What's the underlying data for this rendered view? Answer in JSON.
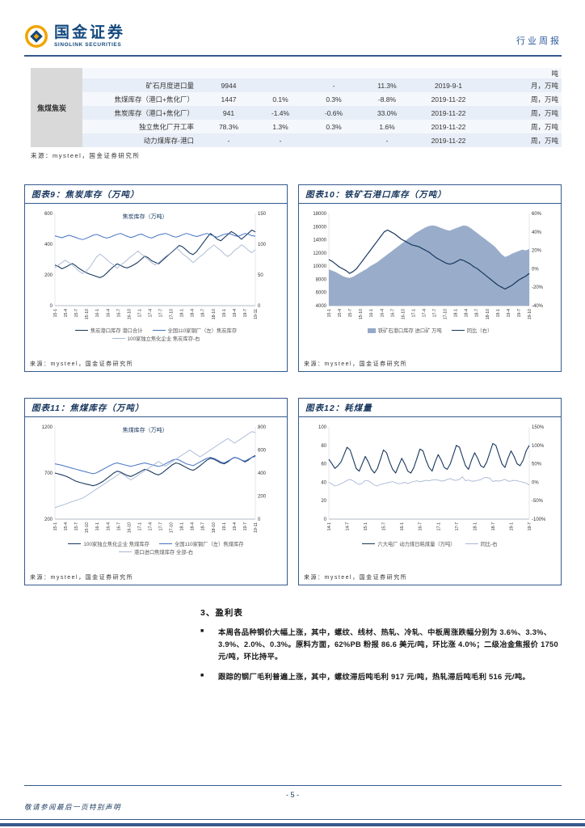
{
  "colors": {
    "brand_navy": "#17365d",
    "rule_blue": "#35598e",
    "gold": "#f0a500",
    "table_row_blue": "#e8eef7",
    "area_fill": "#93a9c7"
  },
  "header": {
    "brand_cn": "国金证券",
    "brand_en": "SINOLINK SECURITIES",
    "report_type": "行业周报"
  },
  "table": {
    "group_label": "焦煤焦炭",
    "unit_header": "吨",
    "source": "来源：mysteel，国金证券研究所",
    "rows": [
      {
        "name": "矿石月度进口量",
        "value": "9944",
        "chg1": "",
        "chg2": "-",
        "chg3": "11.3%",
        "date": "2019-9-1",
        "freq": "月，万吨"
      },
      {
        "name": "焦煤库存（港口+焦化厂）",
        "value": "1447",
        "chg1": "0.1%",
        "chg2": "0.3%",
        "chg3": "-8.8%",
        "date": "2019-11-22",
        "freq": "周，万吨"
      },
      {
        "name": "焦炭库存（港口+焦化厂）",
        "value": "941",
        "chg1": "-1.4%",
        "chg2": "-0.6%",
        "chg3": "33.0%",
        "date": "2019-11-22",
        "freq": "周，万吨"
      },
      {
        "name": "独立焦化厂开工率",
        "value": "78.3%",
        "chg1": "1.3%",
        "chg2": "0.3%",
        "chg3": "1.6%",
        "date": "2019-11-22",
        "freq": "周，万吨"
      },
      {
        "name": "动力煤库存-港口",
        "value": "-",
        "chg1": "-",
        "chg2": "",
        "chg3": "-",
        "date": "2019-11-22",
        "freq": "周，万吨"
      }
    ]
  },
  "charts": [
    {
      "id": 9,
      "type": "line",
      "title": "图表9：焦炭库存（万吨）",
      "inner_title": "焦炭库存（万吨）",
      "source": "来源：mysteel，国金证券研究所",
      "left_axis": {
        "min": 0,
        "max": 600,
        "ticks": [
          "0",
          "200",
          "400",
          "600"
        ]
      },
      "right_axis": {
        "min": 0,
        "max": 150,
        "ticks": [
          "0",
          "50",
          "100",
          "150"
        ]
      },
      "x_ticks": [
        "15-1",
        "15-4",
        "15-7",
        "15-10",
        "16-1",
        "16-4",
        "16-7",
        "16-10",
        "17-1",
        "17-4",
        "17-7",
        "17-10",
        "18-1",
        "18-4",
        "18-7",
        "18-10",
        "19-1",
        "19-4",
        "19-7",
        "19-11"
      ],
      "series": [
        {
          "name": "焦炭港口库存 港口合计",
          "color": "#17375e",
          "axis": "left",
          "type": "line",
          "width": 1.1,
          "values": [
            265,
            255,
            240,
            250,
            262,
            275,
            260,
            242,
            228,
            215,
            205,
            198,
            190,
            182,
            192,
            212,
            235,
            255,
            272,
            262,
            250,
            246,
            256,
            268,
            282,
            302,
            322,
            312,
            292,
            282,
            272,
            292,
            312,
            332,
            352,
            372,
            392,
            382,
            362,
            342,
            332,
            352,
            382,
            412,
            442,
            470,
            452,
            432,
            422,
            442,
            462,
            482,
            470,
            452,
            432,
            452,
            472,
            492,
            480
          ]
        },
        {
          "name": "全国110家钢厂（左）焦炭库存",
          "color": "#4472c4",
          "axis": "left",
          "type": "line",
          "width": 1,
          "values": [
            455,
            448,
            442,
            450,
            458,
            452,
            444,
            436,
            430,
            438,
            448,
            458,
            464,
            456,
            446,
            440,
            446,
            456,
            464,
            470,
            460,
            450,
            444,
            450,
            460,
            466,
            456,
            446,
            440,
            450,
            460,
            466,
            470,
            462,
            452,
            446,
            452,
            462,
            470,
            464,
            456,
            450,
            456,
            464,
            470,
            462,
            452,
            446,
            456,
            464,
            470,
            466,
            456,
            450,
            460,
            470,
            464,
            456,
            452
          ]
        },
        {
          "name": "100家独立焦化企业 焦炭库存-右",
          "color": "#a6b7d4",
          "axis": "right",
          "type": "line",
          "width": 0.9,
          "values": [
            62,
            66,
            70,
            74,
            70,
            66,
            61,
            56,
            52,
            56,
            62,
            70,
            79,
            84,
            80,
            75,
            70,
            66,
            61,
            66,
            70,
            75,
            80,
            84,
            89,
            84,
            80,
            75,
            70,
            66,
            70,
            75,
            80,
            84,
            89,
            94,
            90,
            84,
            80,
            75,
            70,
            75,
            80,
            84,
            90,
            94,
            99,
            94,
            90,
            84,
            80,
            84,
            90,
            94,
            99,
            95,
            90,
            86,
            91
          ]
        }
      ]
    },
    {
      "id": 10,
      "type": "area",
      "title": "图表10：铁矿石港口库存（万吨）",
      "inner_title": "",
      "source": "来源：mysteel，国金证券研究所",
      "left_axis": {
        "min": 4000,
        "max": 18000,
        "ticks": [
          "4000",
          "6000",
          "8000",
          "10000",
          "12000",
          "14000",
          "16000",
          "18000"
        ]
      },
      "right_axis": {
        "min": -40,
        "max": 60,
        "ticks": [
          "-40%",
          "-20%",
          "0%",
          "20%",
          "40%",
          "60%"
        ]
      },
      "x_ticks": [
        "15-1",
        "15-4",
        "15-7",
        "15-10",
        "16-1",
        "16-4",
        "16-7",
        "16-10",
        "17-1",
        "17-4",
        "17-7",
        "17-10",
        "18-1",
        "18-4",
        "18-7",
        "18-10",
        "19-1",
        "19-4",
        "19-7",
        "19-10"
      ],
      "series": [
        {
          "name": "铁矿石港口库存 进口矿 万吨",
          "color": "#93a9c7",
          "axis": "left",
          "type": "area",
          "values": [
            9500,
            9300,
            9100,
            8800,
            8500,
            8300,
            8200,
            8400,
            8700,
            9000,
            9300,
            9600,
            10000,
            10300,
            10600,
            11000,
            11400,
            11800,
            12200,
            12600,
            13000,
            13400,
            13800,
            14200,
            14600,
            15000,
            15300,
            15600,
            15900,
            16100,
            16200,
            16100,
            15900,
            15700,
            15500,
            15400,
            15600,
            15800,
            16000,
            16200,
            16100,
            15800,
            15400,
            15000,
            14600,
            14200,
            13800,
            13400,
            13000,
            12400,
            11800,
            11400,
            11600,
            11900,
            12100,
            12300,
            12500,
            12400,
            12600
          ]
        },
        {
          "name": "同比（右）",
          "color": "#17375e",
          "axis": "right",
          "type": "line",
          "width": 1.2,
          "values": [
            10,
            8,
            5,
            2,
            0,
            -2,
            -5,
            -3,
            0,
            5,
            10,
            15,
            20,
            25,
            30,
            35,
            40,
            42,
            40,
            38,
            35,
            32,
            30,
            28,
            26,
            25,
            24,
            22,
            20,
            18,
            15,
            12,
            10,
            8,
            6,
            5,
            6,
            8,
            10,
            9,
            7,
            5,
            2,
            0,
            -3,
            -6,
            -9,
            -12,
            -15,
            -18,
            -20,
            -22,
            -20,
            -18,
            -15,
            -12,
            -10,
            -8,
            -5
          ]
        }
      ]
    },
    {
      "id": 11,
      "type": "line",
      "title": "图表11：焦煤库存（万吨）",
      "inner_title": "焦煤库存（万吨）",
      "source": "来源：mysteel，国金证券研究所",
      "left_axis": {
        "min": 200,
        "max": 1200,
        "ticks": [
          "200",
          "700",
          "1200"
        ]
      },
      "right_axis": {
        "min": 0,
        "max": 800,
        "ticks": [
          "0",
          "200",
          "400",
          "600",
          "800"
        ]
      },
      "x_ticks": [
        "15-1",
        "15-4",
        "15-7",
        "15-10",
        "16-1",
        "16-4",
        "16-7",
        "16-10",
        "17-1",
        "17-4",
        "17-7",
        "17-10",
        "18-1",
        "18-4",
        "18-7",
        "18-10",
        "19-1",
        "19-4",
        "19-7",
        "19-11"
      ],
      "series": [
        {
          "name": "100家独立焦化企业 焦煤库存",
          "color": "#17375e",
          "axis": "left",
          "type": "line",
          "width": 1.1,
          "values": [
            700,
            690,
            680,
            668,
            652,
            632,
            612,
            600,
            590,
            580,
            572,
            562,
            572,
            590,
            612,
            640,
            668,
            700,
            720,
            710,
            690,
            672,
            662,
            680,
            700,
            720,
            740,
            730,
            710,
            690,
            680,
            700,
            730,
            760,
            790,
            810,
            800,
            780,
            760,
            740,
            730,
            750,
            780,
            810,
            840,
            860,
            850,
            830,
            810,
            800,
            820,
            850,
            870,
            860,
            840,
            820,
            840,
            870,
            890
          ]
        },
        {
          "name": "全国110家钢厂（左）焦煤库存",
          "color": "#4472c4",
          "axis": "left",
          "type": "line",
          "width": 1,
          "values": [
            800,
            792,
            784,
            774,
            762,
            752,
            742,
            732,
            722,
            712,
            702,
            692,
            702,
            722,
            742,
            762,
            782,
            800,
            810,
            800,
            790,
            780,
            772,
            782,
            792,
            802,
            810,
            800,
            790,
            780,
            772,
            782,
            800,
            820,
            840,
            850,
            840,
            820,
            800,
            790,
            780,
            800,
            820,
            840,
            860,
            870,
            860,
            840,
            820,
            810,
            830,
            850,
            870,
            860,
            840,
            830,
            850,
            870,
            880
          ]
        },
        {
          "name": "港口进口焦煤库存 全部-右",
          "color": "#a6b7d4",
          "axis": "right",
          "type": "line",
          "width": 0.9,
          "values": [
            100,
            110,
            120,
            130,
            142,
            152,
            162,
            172,
            182,
            200,
            220,
            240,
            260,
            280,
            300,
            320,
            340,
            360,
            380,
            400,
            380,
            360,
            340,
            360,
            380,
            400,
            420,
            440,
            460,
            480,
            500,
            480,
            460,
            480,
            500,
            520,
            540,
            560,
            580,
            600,
            580,
            560,
            540,
            560,
            580,
            600,
            620,
            640,
            660,
            680,
            700,
            680,
            660,
            680,
            700,
            720,
            740,
            760,
            750
          ]
        }
      ]
    },
    {
      "id": 12,
      "type": "line",
      "title": "图表12：耗煤量",
      "inner_title": "",
      "source": "来源：mysteel，国金证券研究所",
      "left_axis": {
        "min": 0,
        "max": 100,
        "ticks": [
          "0",
          "20",
          "40",
          "60",
          "80",
          "100"
        ]
      },
      "right_axis": {
        "min": -100,
        "max": 150,
        "ticks": [
          "-100%",
          "-50%",
          "0%",
          "50%",
          "100%",
          "150%"
        ]
      },
      "x_ticks": [
        "14-1",
        "14-7",
        "15-1",
        "15-7",
        "16-1",
        "16-7",
        "17-1",
        "17-7",
        "18-1",
        "18-7",
        "19-1",
        "19-7"
      ],
      "series": [
        {
          "name": "六大电厂 动力煤日耗煤量（万吨）",
          "color": "#17375e",
          "axis": "left",
          "type": "line",
          "width": 1.1,
          "values": [
            65,
            60,
            55,
            58,
            62,
            70,
            78,
            75,
            65,
            55,
            52,
            60,
            68,
            62,
            54,
            50,
            55,
            65,
            75,
            72,
            62,
            54,
            50,
            58,
            66,
            60,
            52,
            50,
            56,
            66,
            76,
            74,
            64,
            56,
            52,
            62,
            70,
            64,
            56,
            54,
            60,
            70,
            80,
            78,
            68,
            58,
            54,
            64,
            72,
            66,
            58,
            56,
            62,
            72,
            82,
            80,
            70,
            60,
            56,
            66,
            74,
            68,
            60,
            58,
            64,
            74,
            80
          ]
        },
        {
          "name": "同比-右",
          "color": "#a6b7d4",
          "axis": "right",
          "type": "line",
          "width": 0.9,
          "values": [
            0,
            -5,
            -10,
            -8,
            -4,
            0,
            5,
            8,
            4,
            -2,
            -6,
            -3,
            5,
            4,
            -2,
            -8,
            -10,
            -6,
            -4,
            -2,
            0,
            2,
            -2,
            -4,
            -3,
            0,
            -4,
            0,
            2,
            4,
            1,
            3,
            5,
            4,
            6,
            7,
            6,
            3,
            4,
            8,
            10,
            6,
            5,
            8,
            15,
            4,
            6,
            3,
            3,
            5,
            7,
            12,
            13,
            11,
            2,
            4,
            3,
            5,
            8,
            3,
            3,
            5,
            4,
            2,
            0,
            -2,
            -8
          ]
        }
      ]
    }
  ],
  "section3": {
    "title": "3、盈利表",
    "bullet_marker": "■",
    "bullets": [
      "本周各品种钢价大幅上涨，其中，螺纹、线材、热轧、冷轧、中板周涨跌幅分别为 3.6%、3.3%、3.9%、2.0%、0.3%。原料方面，62%PB 粉报 86.6 美元/吨，环比涨 4.0%；二级冶金焦报价 1750 元/吨，环比持平。",
      "跟踪的钢厂毛利普遍上涨，其中，螺纹滞后吨毛利 917 元/吨，热轧滞后吨毛利 516 元/吨。"
    ]
  },
  "footer": {
    "page_label": "- 5 -",
    "disclaimer": "敬请参阅最后一页特别声明"
  }
}
